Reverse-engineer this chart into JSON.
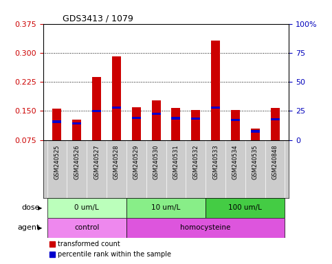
{
  "title": "GDS3413 / 1079",
  "samples": [
    "GSM240525",
    "GSM240526",
    "GSM240527",
    "GSM240528",
    "GSM240529",
    "GSM240530",
    "GSM240531",
    "GSM240532",
    "GSM240533",
    "GSM240534",
    "GSM240535",
    "GSM240848"
  ],
  "red_values": [
    0.155,
    0.128,
    0.237,
    0.291,
    0.16,
    0.178,
    0.158,
    0.153,
    0.332,
    0.153,
    0.105,
    0.158
  ],
  "blue_values": [
    0.122,
    0.118,
    0.15,
    0.158,
    0.132,
    0.143,
    0.131,
    0.13,
    0.159,
    0.127,
    0.097,
    0.128
  ],
  "ylim_left": [
    0.075,
    0.375
  ],
  "ylim_right": [
    0,
    100
  ],
  "yticks_left": [
    0.075,
    0.15,
    0.225,
    0.3,
    0.375
  ],
  "yticks_right": [
    0,
    25,
    50,
    75,
    100
  ],
  "dose_groups": [
    {
      "label": "0 um/L",
      "start": 0,
      "end": 4,
      "color": "#bbffbb"
    },
    {
      "label": "10 um/L",
      "start": 4,
      "end": 8,
      "color": "#88ee88"
    },
    {
      "label": "100 um/L",
      "start": 8,
      "end": 12,
      "color": "#44cc44"
    }
  ],
  "agent_groups": [
    {
      "label": "control",
      "start": 0,
      "end": 4,
      "color": "#ee88ee"
    },
    {
      "label": "homocysteine",
      "start": 4,
      "end": 12,
      "color": "#dd55dd"
    }
  ],
  "bar_color_red": "#cc0000",
  "bar_color_blue": "#0000cc",
  "bar_width": 0.45,
  "bg_color": "#ffffff",
  "label_color_left": "#cc0000",
  "label_color_right": "#0000bb",
  "legend_red": "transformed count",
  "legend_blue": "percentile rank within the sample",
  "sample_bg_color": "#cccccc"
}
